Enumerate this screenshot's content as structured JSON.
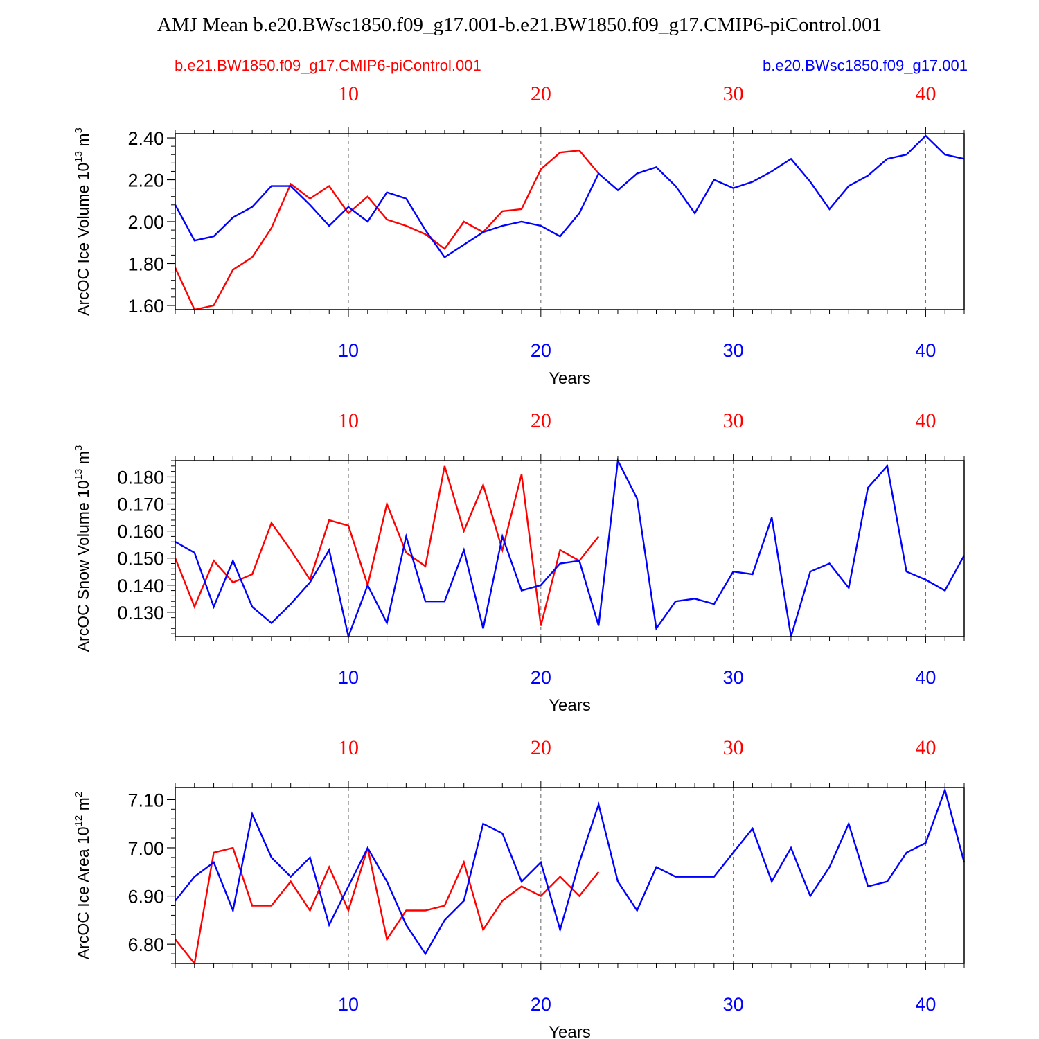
{
  "title": "AMJ Mean b.e20.BWsc1850.f09_g17.001-b.e21.BW1850.f09_g17.CMIP6-piControl.001",
  "legend": {
    "left_label": "b.e21.BW1850.f09_g17.CMIP6-piControl.001",
    "right_label": "b.e20.BWsc1850.f09_g17.001"
  },
  "colors": {
    "control": "#ff0000",
    "experiment": "#0000ff",
    "axis": "#000000",
    "grid": "#666666"
  },
  "chart_data": [
    {
      "type": "line",
      "ylabel": "ArcOC Ice Volume 10",
      "ylabel_exp": "13",
      "ylabel_unit": " m",
      "ylabel_unit_exp": "3",
      "xlabel": "Years",
      "xlim": [
        1,
        42
      ],
      "ylim": [
        1.58,
        2.42
      ],
      "yticks": [
        "1.60",
        "1.80",
        "2.00",
        "2.20",
        "2.40"
      ],
      "xticks_bottom": [
        "10",
        "20",
        "30",
        "40"
      ],
      "xticks_top": [
        "10",
        "20",
        "30",
        "40"
      ],
      "series": [
        {
          "name": "b.e21.BW1850.f09_g17.CMIP6-piControl.001",
          "color": "#ff0000",
          "x_start": 1,
          "values": [
            1.78,
            1.58,
            1.6,
            1.77,
            1.83,
            1.97,
            2.18,
            2.11,
            2.17,
            2.04,
            2.12,
            2.01,
            1.98,
            1.94,
            1.87,
            2.0,
            1.95,
            2.05,
            2.06,
            2.25,
            2.33,
            2.34,
            2.23
          ]
        },
        {
          "name": "b.e20.BWsc1850.f09_g17.001",
          "color": "#0000ff",
          "x_start": 1,
          "values": [
            2.08,
            1.91,
            1.93,
            2.02,
            2.07,
            2.17,
            2.17,
            2.08,
            1.98,
            2.07,
            2.0,
            2.14,
            2.11,
            1.96,
            1.83,
            1.89,
            1.95,
            1.98,
            2.0,
            1.98,
            1.93,
            2.04,
            2.23,
            2.15,
            2.23,
            2.26,
            2.17,
            2.04,
            2.2,
            2.16,
            2.19,
            2.24,
            2.3,
            2.19,
            2.06,
            2.17,
            2.22,
            2.3,
            2.32,
            2.41,
            2.32,
            2.3
          ]
        }
      ]
    },
    {
      "type": "line",
      "ylabel": "ArcOC Snow Volume 10",
      "ylabel_exp": "13",
      "ylabel_unit": " m",
      "ylabel_unit_exp": "3",
      "xlabel": "Years",
      "xlim": [
        1,
        42
      ],
      "ylim": [
        0.121,
        0.186
      ],
      "yticks": [
        "0.130",
        "0.140",
        "0.150",
        "0.160",
        "0.170",
        "0.180"
      ],
      "xticks_bottom": [
        "10",
        "20",
        "30",
        "40"
      ],
      "xticks_top": [
        "10",
        "20",
        "30",
        "40"
      ],
      "series": [
        {
          "name": "b.e21.BW1850.f09_g17.CMIP6-piControl.001",
          "color": "#ff0000",
          "x_start": 1,
          "values": [
            0.15,
            0.132,
            0.149,
            0.141,
            0.144,
            0.163,
            0.153,
            0.142,
            0.164,
            0.162,
            0.14,
            0.17,
            0.152,
            0.147,
            0.184,
            0.16,
            0.177,
            0.153,
            0.181,
            0.125,
            0.153,
            0.149,
            0.158
          ]
        },
        {
          "name": "b.e20.BWsc1850.f09_g17.001",
          "color": "#0000ff",
          "x_start": 1,
          "values": [
            0.156,
            0.152,
            0.132,
            0.149,
            0.132,
            0.126,
            0.133,
            0.141,
            0.153,
            0.121,
            0.14,
            0.126,
            0.158,
            0.134,
            0.134,
            0.153,
            0.124,
            0.158,
            0.138,
            0.14,
            0.148,
            0.149,
            0.125,
            0.186,
            0.172,
            0.124,
            0.134,
            0.135,
            0.133,
            0.145,
            0.144,
            0.165,
            0.121,
            0.145,
            0.148,
            0.139,
            0.176,
            0.184,
            0.145,
            0.142,
            0.138,
            0.151
          ]
        }
      ]
    },
    {
      "type": "line",
      "ylabel": "ArcOC Ice Area 10",
      "ylabel_exp": "12",
      "ylabel_unit": " m",
      "ylabel_unit_exp": "2",
      "xlabel": "Years",
      "xlim": [
        1,
        42
      ],
      "ylim": [
        6.76,
        7.125
      ],
      "yticks": [
        "6.80",
        "6.90",
        "7.00",
        "7.10"
      ],
      "xticks_bottom": [
        "10",
        "20",
        "30",
        "40"
      ],
      "xticks_top": [
        "10",
        "20",
        "30",
        "40"
      ],
      "series": [
        {
          "name": "b.e21.BW1850.f09_g17.CMIP6-piControl.001",
          "color": "#ff0000",
          "x_start": 1,
          "values": [
            6.81,
            6.76,
            6.99,
            7.0,
            6.88,
            6.88,
            6.93,
            6.87,
            6.96,
            6.87,
            7.0,
            6.81,
            6.87,
            6.87,
            6.88,
            6.97,
            6.83,
            6.89,
            6.92,
            6.9,
            6.94,
            6.9,
            6.95
          ]
        },
        {
          "name": "b.e20.BWsc1850.f09_g17.001",
          "color": "#0000ff",
          "x_start": 1,
          "values": [
            6.89,
            6.94,
            6.97,
            6.87,
            7.07,
            6.98,
            6.94,
            6.98,
            6.84,
            6.92,
            7.0,
            6.93,
            6.84,
            6.78,
            6.85,
            6.89,
            7.05,
            7.03,
            6.93,
            6.97,
            6.83,
            6.97,
            7.09,
            6.93,
            6.87,
            6.96,
            6.94,
            6.94,
            6.94,
            6.99,
            7.04,
            6.93,
            7.0,
            6.9,
            6.96,
            7.05,
            6.92,
            6.93,
            6.99,
            7.01,
            7.12,
            6.97
          ]
        }
      ]
    }
  ]
}
